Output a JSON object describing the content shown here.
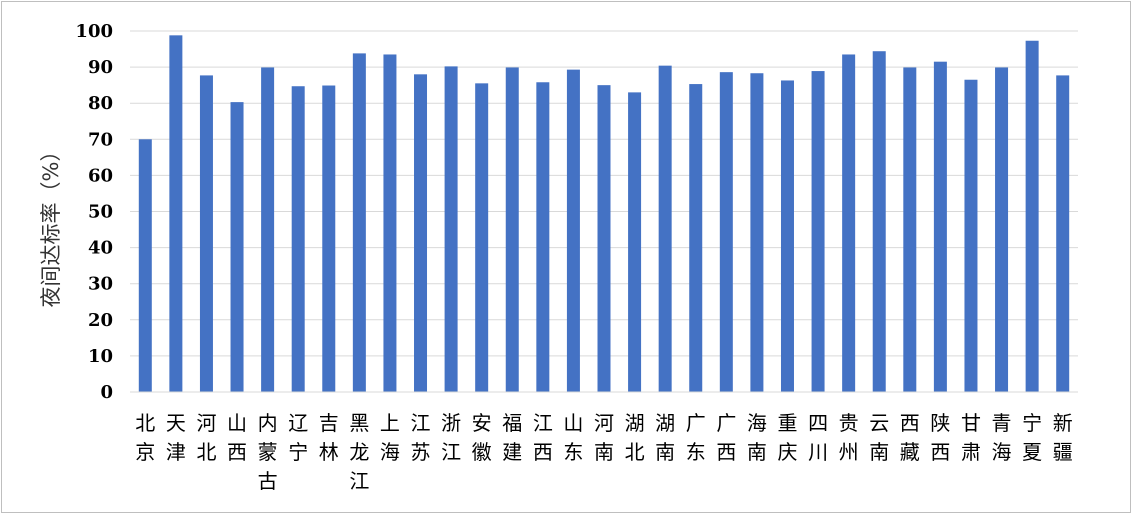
{
  "chart_data": {
    "type": "bar",
    "title": "",
    "xlabel": "",
    "ylabel": "夜间达标率（%）",
    "ylim": [
      0,
      100
    ],
    "yticks": [
      0,
      10,
      20,
      30,
      40,
      50,
      60,
      70,
      80,
      90,
      100
    ],
    "grid": true,
    "legend": "none",
    "bar_color": "#4472C4",
    "categories": [
      "北京",
      "天津",
      "河北",
      "山西",
      "内蒙古",
      "辽宁",
      "吉林",
      "黑龙江",
      "上海",
      "江苏",
      "浙江",
      "安徽",
      "福建",
      "江西",
      "山东",
      "河南",
      "湖北",
      "湖南",
      "广东",
      "广西",
      "海南",
      "重庆",
      "四川",
      "贵州",
      "云南",
      "西藏",
      "陕西",
      "甘肃",
      "青海",
      "宁夏",
      "新疆"
    ],
    "values": [
      70.0,
      98.8,
      87.7,
      80.3,
      89.9,
      84.7,
      84.9,
      93.8,
      93.5,
      88.0,
      90.2,
      85.5,
      89.9,
      85.8,
      89.3,
      85.0,
      83.0,
      90.4,
      85.3,
      88.6,
      88.3,
      86.3,
      88.9,
      93.5,
      94.4,
      89.9,
      91.5,
      86.5,
      89.9,
      97.3,
      87.7
    ]
  }
}
